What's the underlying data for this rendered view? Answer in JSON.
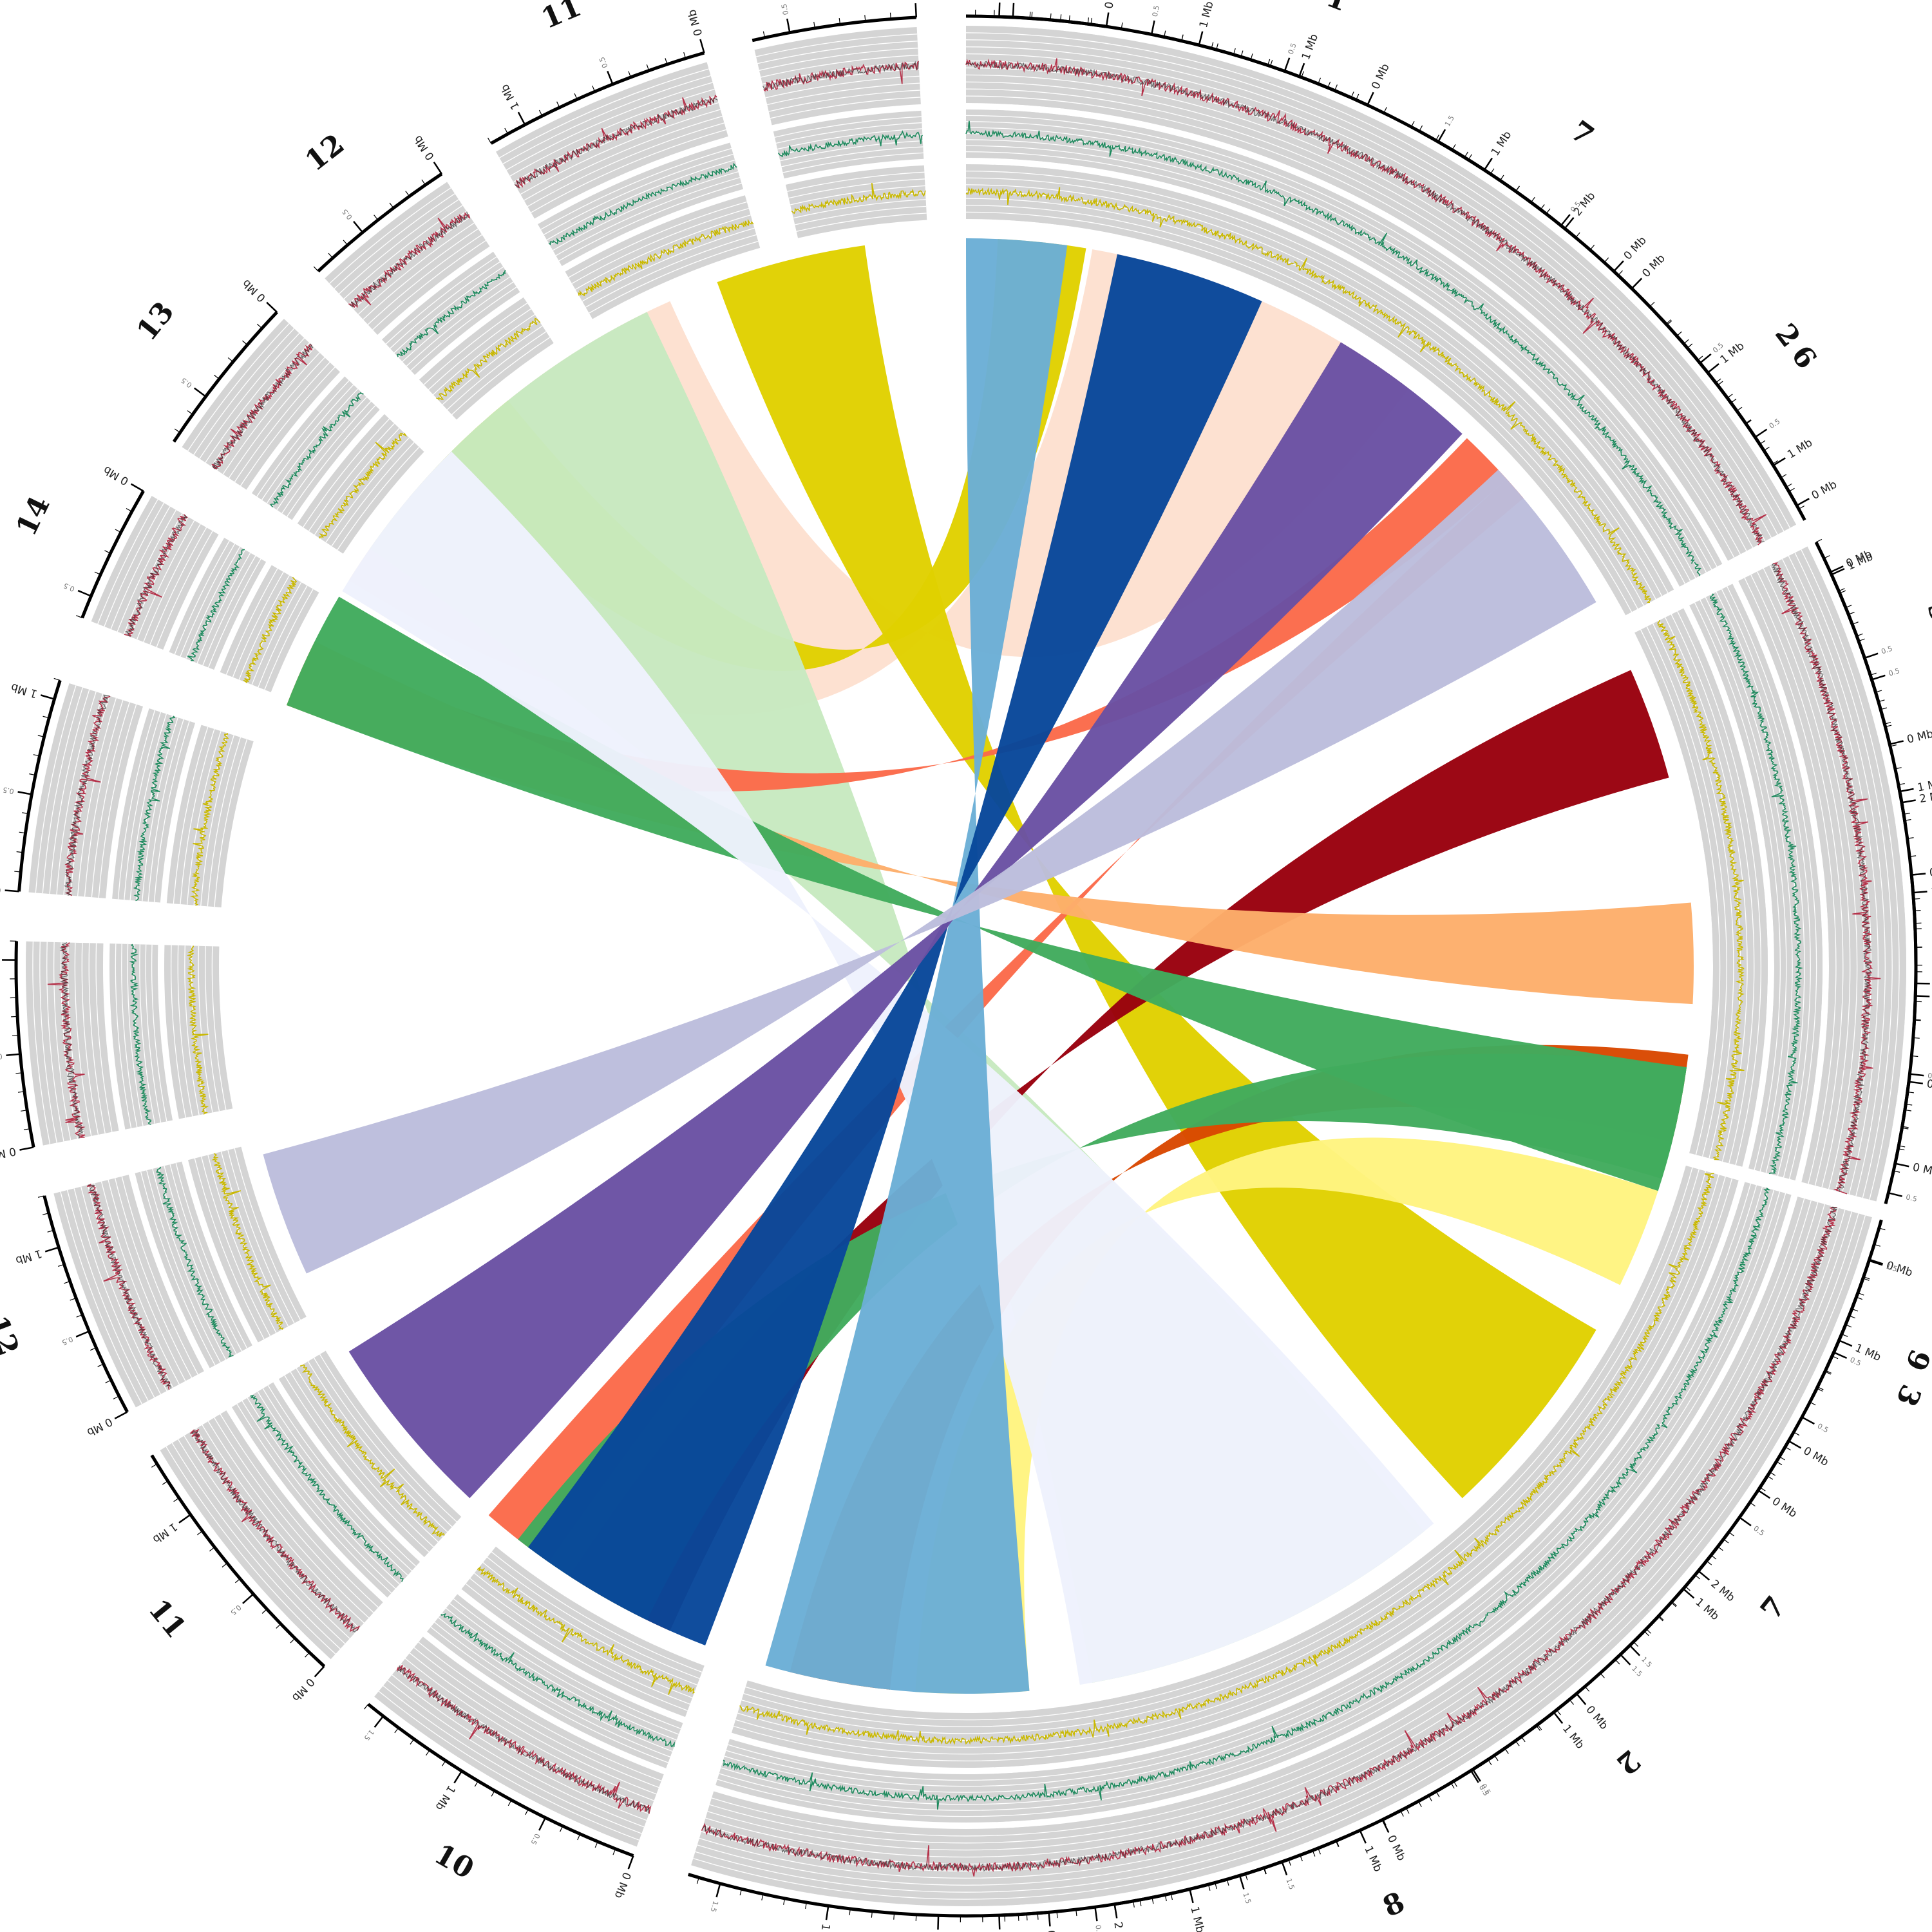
{
  "figure": {
    "type": "circos-synteny",
    "track_colors": {
      "background": "#d4d4d4",
      "gridline": "#ffffff",
      "track_outer": "#b5324a",
      "track_outer_dark": "#303030",
      "track_middle": "#1f8a5e",
      "track_inner": "#c9b800"
    },
    "genome_a": {
      "chromosomes": [
        {
          "name": "1",
          "length_mb": 2.05,
          "ticks": [
            "0 Mb",
            "0.5",
            "1 Mb",
            "1.5",
            "2 Mb"
          ]
        },
        {
          "name": "2",
          "length_mb": 1.25,
          "ticks": [
            "0 Mb",
            "0.5",
            "1 Mb"
          ]
        },
        {
          "name": "3",
          "length_mb": 1.15,
          "ticks": [
            "0 Mb",
            "0.5",
            "1 Mb"
          ]
        },
        {
          "name": "4",
          "length_mb": 0.65,
          "ticks": [
            "0 Mb",
            "0.5"
          ]
        },
        {
          "name": "5",
          "length_mb": 0.55,
          "ticks": [
            "0 Mb",
            "0.5"
          ]
        },
        {
          "name": "6",
          "length_mb": 0.75,
          "ticks": [
            "0 Mb",
            "0.5"
          ]
        },
        {
          "name": "7",
          "length_mb": 1.55,
          "ticks": [
            "0 Mb",
            "0.5",
            "1 Mb",
            "1.5"
          ]
        },
        {
          "name": "8",
          "length_mb": 2.0,
          "ticks": [
            "0 Mb",
            "0.5",
            "1 Mb",
            "1.5",
            "2 Mb"
          ]
        },
        {
          "name": "9",
          "length_mb": 1.65,
          "ticks": [
            "0 Mb",
            "0.5",
            "1 Mb",
            "1.5"
          ]
        },
        {
          "name": "10",
          "length_mb": 1.6,
          "ticks": [
            "0 Mb",
            "0.5",
            "1 Mb",
            "1.5"
          ]
        },
        {
          "name": "11",
          "length_mb": 1.35,
          "ticks": [
            "0 Mb",
            "0.5",
            "1 Mb"
          ]
        },
        {
          "name": "12",
          "length_mb": 1.3,
          "ticks": [
            "0 Mb",
            "0.5",
            "1 Mb"
          ]
        },
        {
          "name": "13",
          "length_mb": 1.1,
          "ticks": [
            "0 Mb",
            "0.5",
            "1 Mb"
          ]
        },
        {
          "name": "14",
          "length_mb": 1.1,
          "ticks": [
            "0 Mb",
            "0.5",
            "1 Mb"
          ]
        }
      ]
    },
    "genome_b": {
      "chromosomes": [
        {
          "name": "14",
          "length_mb": 0.6,
          "ticks": [
            "0 Mb",
            "0.5"
          ]
        },
        {
          "name": "13",
          "length_mb": 0.75,
          "ticks": [
            "0 Mb",
            "0.5"
          ]
        },
        {
          "name": "12",
          "length_mb": 0.8,
          "ticks": [
            "0 Mb",
            "0.5"
          ]
        },
        {
          "name": "11",
          "length_mb": 1.2,
          "ticks": [
            "0 Mb",
            "0.5",
            "1 Mb"
          ]
        },
        {
          "name": "10",
          "length_mb": 0.65,
          "ticks": [
            "0 Mb",
            "0.5"
          ]
        },
        {
          "name": "9",
          "length_mb": 0.75,
          "ticks": [
            "0 Mb",
            "0.5"
          ]
        },
        {
          "name": "8",
          "length_mb": 1.25,
          "ticks": [
            "0 Mb",
            "0.5",
            "1 Mb"
          ]
        },
        {
          "name": "7",
          "length_mb": 1.4,
          "ticks": [
            "0 Mb",
            "0.5",
            "1 Mb"
          ]
        },
        {
          "name": "6",
          "length_mb": 1.45,
          "ticks": [
            "0 Mb",
            "0.5",
            "1 Mb"
          ]
        },
        {
          "name": "5",
          "length_mb": 1.2,
          "ticks": [
            "0 Mb",
            "0.5",
            "1 Mb"
          ]
        },
        {
          "name": "4",
          "length_mb": 2.1,
          "ticks": [
            "0 Mb",
            "0.5",
            "1 Mb",
            "1.5",
            "2 Mb"
          ]
        },
        {
          "name": "3",
          "length_mb": 1.75,
          "ticks": [
            "0 Mb",
            "0.5",
            "1 Mb",
            "1.5"
          ]
        },
        {
          "name": "2",
          "length_mb": 2.25,
          "ticks": [
            "0 Mb",
            "0.5",
            "1 Mb",
            "1.5",
            "2 Mb"
          ]
        },
        {
          "name": "1",
          "length_mb": 1.85,
          "ticks": [
            "0 Mb",
            "0.5",
            "1 Mb",
            "1.5"
          ]
        }
      ]
    },
    "links": [
      {
        "from": "1",
        "to": "1",
        "color": "#fde0d0"
      },
      {
        "from": "1",
        "to": "2",
        "color": "#e0d100"
      },
      {
        "from": "2",
        "to": "7",
        "color": "#e0d100"
      },
      {
        "from": "3",
        "to": "8",
        "color": "#c7e9c0"
      },
      {
        "from": "2",
        "to": "4",
        "color": "#fb6a4a"
      },
      {
        "from": "2",
        "to": "9",
        "color": "#fb6a4a"
      },
      {
        "from": "3",
        "to": "12",
        "color": "#99000d"
      },
      {
        "from": "4",
        "to": "4",
        "color": "#fdae6b"
      },
      {
        "from": "5",
        "to": "13",
        "color": "#d94801"
      },
      {
        "from": "6",
        "to": "14",
        "color": "#fff480"
      },
      {
        "from": "4",
        "to": "9",
        "color": "#41ab5d"
      },
      {
        "from": "9",
        "to": "9",
        "color": "#41ab5d"
      },
      {
        "from": "5",
        "to": "10",
        "color": "#eef2fd"
      },
      {
        "from": "6",
        "to": "11",
        "color": "#6baed6"
      },
      {
        "from": "7",
        "to": "12",
        "color": "#08479a"
      },
      {
        "from": "8",
        "to": "14",
        "color": "#6a51a3"
      },
      {
        "from": "14",
        "to": "13",
        "color": "#bcbddc"
      }
    ]
  }
}
